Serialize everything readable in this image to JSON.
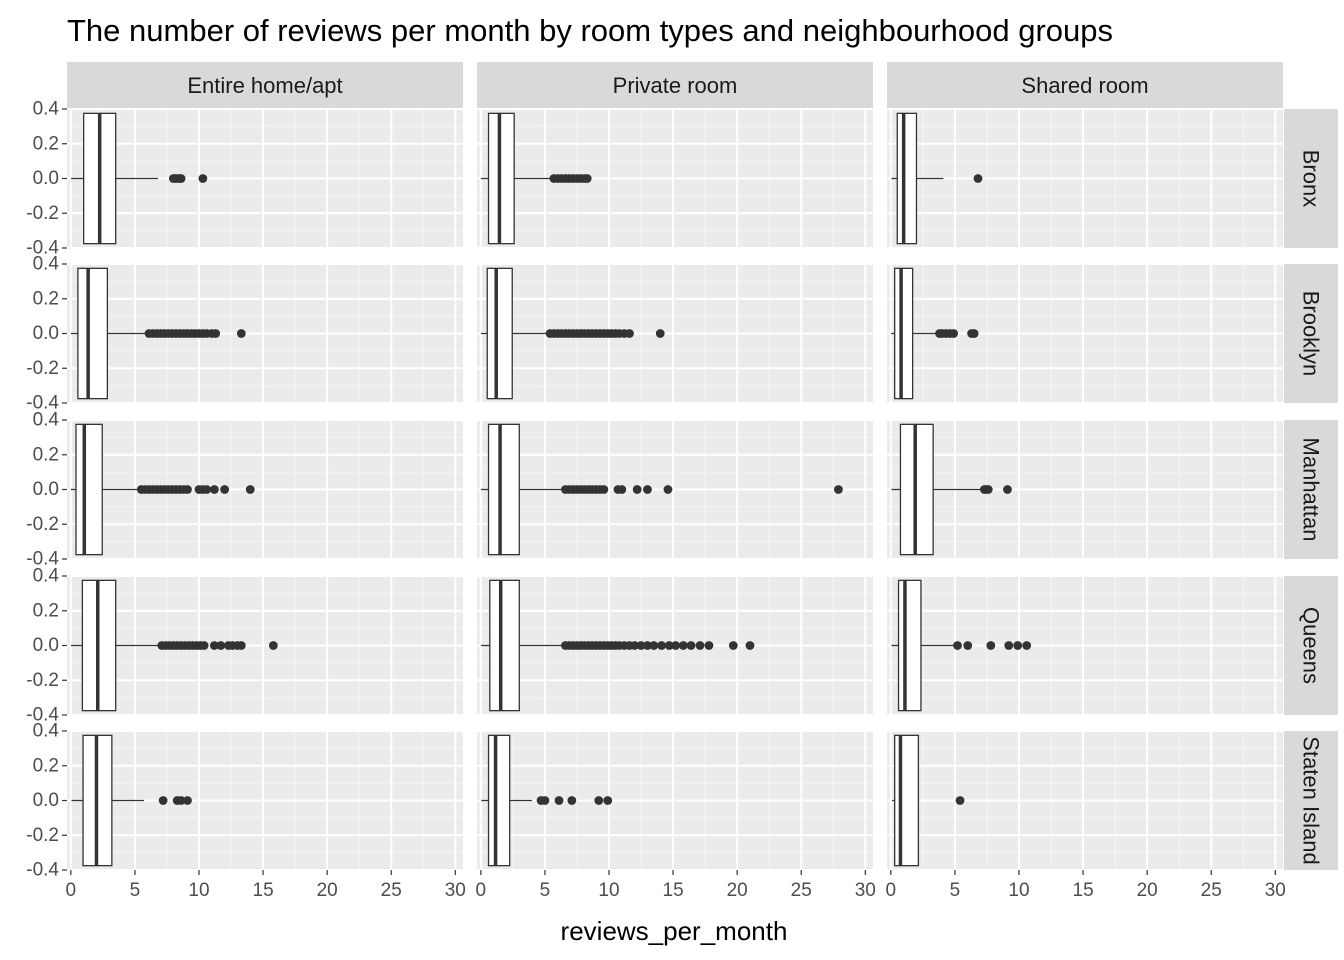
{
  "chart_data": {
    "type": "boxplot",
    "title": "The number of reviews per month by room types and neighbourhood groups",
    "xlabel": "reviews_per_month",
    "ylabel": "",
    "xlim": [
      -0.3,
      30.6
    ],
    "ylim": [
      -0.4,
      0.4
    ],
    "x_ticks": [
      "0",
      "5",
      "10",
      "15",
      "20",
      "25",
      "30"
    ],
    "x_tick_values": [
      0,
      5,
      10,
      15,
      20,
      25,
      30
    ],
    "y_ticks": [
      "0.4",
      "0.2",
      "0.0",
      "-0.2",
      "-0.4"
    ],
    "y_tick_values": [
      0.4,
      0.2,
      0.0,
      -0.2,
      -0.4
    ],
    "grid": true,
    "facet_columns": [
      "Entire home/apt",
      "Private room",
      "Shared room"
    ],
    "facet_rows": [
      "Bronx",
      "Brooklyn",
      "Manhattan",
      "Queens",
      "Staten Island"
    ],
    "panels": [
      {
        "row": "Bronx",
        "col": "Entire home/apt",
        "min": 0.03,
        "q1": 1.0,
        "median": 2.25,
        "q3": 3.5,
        "whisker_high": 6.8,
        "outliers": [
          8.0,
          8.15,
          8.3,
          8.5,
          8.6,
          10.3
        ]
      },
      {
        "row": "Bronx",
        "col": "Private room",
        "min": 0.02,
        "q1": 0.6,
        "median": 1.45,
        "q3": 2.6,
        "whisker_high": 5.6,
        "outliers": [
          5.7,
          6.0,
          6.3,
          6.6,
          6.9,
          7.2,
          7.5,
          7.8,
          8.1,
          8.3
        ]
      },
      {
        "row": "Bronx",
        "col": "Shared room",
        "min": 0.05,
        "q1": 0.5,
        "median": 1.0,
        "q3": 2.0,
        "whisker_high": 4.1,
        "outliers": [
          6.8
        ]
      },
      {
        "row": "Brooklyn",
        "col": "Entire home/apt",
        "min": 0.01,
        "q1": 0.55,
        "median": 1.35,
        "q3": 2.85,
        "whisker_high": 6.0,
        "outliers": [
          6.1,
          6.4,
          6.7,
          7.0,
          7.3,
          7.6,
          7.9,
          8.2,
          8.5,
          8.8,
          9.1,
          9.4,
          9.7,
          10.0,
          10.3,
          10.6,
          11.0,
          11.3,
          13.3
        ]
      },
      {
        "row": "Brooklyn",
        "col": "Private room",
        "min": 0.01,
        "q1": 0.5,
        "median": 1.2,
        "q3": 2.45,
        "whisker_high": 5.3,
        "outliers": [
          5.4,
          5.7,
          6.0,
          6.3,
          6.6,
          6.9,
          7.2,
          7.5,
          7.8,
          8.1,
          8.4,
          8.7,
          9.0,
          9.3,
          9.6,
          9.9,
          10.2,
          10.5,
          10.8,
          11.2,
          11.6,
          14.0
        ]
      },
      {
        "row": "Brooklyn",
        "col": "Shared room",
        "min": 0.03,
        "q1": 0.3,
        "median": 0.8,
        "q3": 1.7,
        "whisker_high": 3.7,
        "outliers": [
          3.8,
          4.0,
          4.3,
          4.6,
          4.9,
          6.3,
          6.5
        ]
      },
      {
        "row": "Manhattan",
        "col": "Entire home/apt",
        "min": 0.01,
        "q1": 0.4,
        "median": 1.05,
        "q3": 2.45,
        "whisker_high": 5.4,
        "outliers": [
          5.5,
          5.8,
          6.1,
          6.4,
          6.7,
          7.0,
          7.3,
          7.6,
          7.9,
          8.2,
          8.5,
          8.8,
          9.1,
          10.0,
          10.3,
          10.6,
          11.2,
          12.0,
          14.0
        ]
      },
      {
        "row": "Manhattan",
        "col": "Private room",
        "min": 0.01,
        "q1": 0.6,
        "median": 1.5,
        "q3": 3.0,
        "whisker_high": 6.5,
        "outliers": [
          6.6,
          6.9,
          7.2,
          7.5,
          7.8,
          8.1,
          8.4,
          8.7,
          9.0,
          9.3,
          9.6,
          10.7,
          11.0,
          12.2,
          13.0,
          14.6,
          27.9
        ]
      },
      {
        "row": "Manhattan",
        "col": "Shared room",
        "min": 0.05,
        "q1": 0.75,
        "median": 1.9,
        "q3": 3.3,
        "whisker_high": 7.1,
        "outliers": [
          7.3,
          7.45,
          7.6,
          9.1
        ]
      },
      {
        "row": "Queens",
        "col": "Entire home/apt",
        "min": 0.02,
        "q1": 0.9,
        "median": 2.1,
        "q3": 3.5,
        "whisker_high": 7.0,
        "outliers": [
          7.1,
          7.4,
          7.7,
          8.0,
          8.3,
          8.6,
          8.9,
          9.2,
          9.5,
          9.8,
          10.1,
          10.4,
          11.2,
          11.7,
          12.3,
          12.6,
          13.0,
          13.3,
          15.8
        ]
      },
      {
        "row": "Queens",
        "col": "Private room",
        "min": 0.02,
        "q1": 0.7,
        "median": 1.55,
        "q3": 3.0,
        "whisker_high": 6.5,
        "outliers": [
          6.6,
          6.9,
          7.2,
          7.5,
          7.8,
          8.1,
          8.4,
          8.7,
          9.0,
          9.3,
          9.6,
          9.9,
          10.2,
          10.5,
          10.8,
          11.2,
          11.6,
          12.0,
          12.5,
          13.0,
          13.5,
          14.1,
          14.7,
          15.2,
          15.8,
          16.4,
          17.1,
          17.8,
          19.7,
          21.0
        ]
      },
      {
        "row": "Queens",
        "col": "Shared room",
        "min": 0.05,
        "q1": 0.6,
        "median": 1.1,
        "q3": 2.35,
        "whisker_high": 5.0,
        "outliers": [
          5.2,
          6.0,
          7.8,
          9.2,
          9.9,
          10.6
        ]
      },
      {
        "row": "Staten Island",
        "col": "Entire home/apt",
        "min": 0.05,
        "q1": 0.95,
        "median": 2.0,
        "q3": 3.2,
        "whisker_high": 5.7,
        "outliers": [
          7.2,
          8.3,
          8.6,
          9.1
        ]
      },
      {
        "row": "Staten Island",
        "col": "Private room",
        "min": 0.04,
        "q1": 0.6,
        "median": 1.15,
        "q3": 2.25,
        "whisker_high": 4.0,
        "outliers": [
          4.7,
          5.0,
          6.1,
          7.1,
          9.2,
          9.9
        ]
      },
      {
        "row": "Staten Island",
        "col": "Shared room",
        "min": 0.1,
        "q1": 0.3,
        "median": 0.75,
        "q3": 2.15,
        "whisker_high": 2.15,
        "outliers": [
          5.4
        ]
      }
    ]
  }
}
